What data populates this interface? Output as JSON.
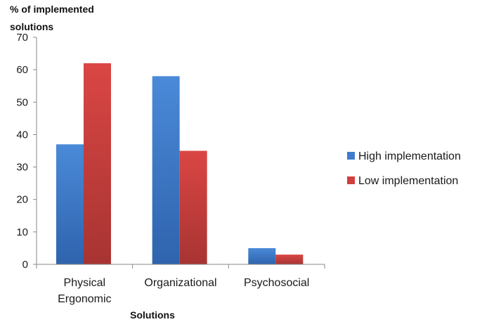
{
  "chart_data": {
    "type": "bar",
    "ylabel": "% of implemented solutions",
    "xlabel": "Solutions",
    "categories": [
      [
        "Physical",
        "Ergonomic"
      ],
      [
        "Organizational"
      ],
      [
        "Psychosocial"
      ]
    ],
    "series": [
      {
        "name": "High implementation",
        "values": [
          37,
          58,
          5
        ],
        "color": "#3f7ccc"
      },
      {
        "name": "Low implementation",
        "values": [
          62,
          35,
          3
        ],
        "color": "#d13f3c"
      }
    ],
    "ylim": [
      0,
      70
    ],
    "yticks": [
      0,
      10,
      20,
      30,
      40,
      50,
      60,
      70
    ],
    "grid": false,
    "legend_position": "right"
  }
}
